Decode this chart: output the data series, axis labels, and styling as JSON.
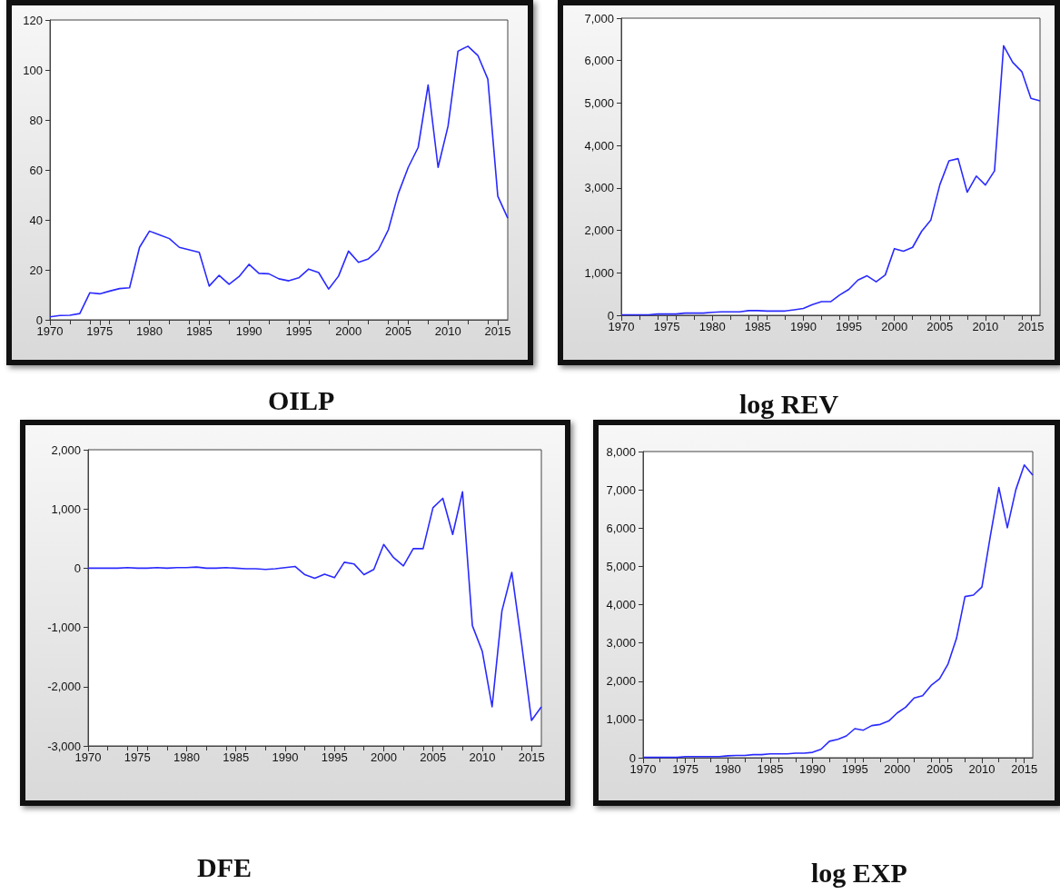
{
  "chart_data": [
    {
      "type": "line",
      "title": "OILP",
      "color": "#2a2aff",
      "marker": "none",
      "x": [
        1970,
        1971,
        1972,
        1973,
        1974,
        1975,
        1976,
        1977,
        1978,
        1979,
        1980,
        1981,
        1982,
        1983,
        1984,
        1985,
        1986,
        1987,
        1988,
        1989,
        1990,
        1991,
        1992,
        1993,
        1994,
        1995,
        1996,
        1997,
        1998,
        1999,
        2000,
        2001,
        2002,
        2003,
        2004,
        2005,
        2006,
        2007,
        2008,
        2009,
        2010,
        2011,
        2012,
        2013,
        2014,
        2015,
        2016
      ],
      "values": [
        1.2,
        1.7,
        1.8,
        2.5,
        10.8,
        10.4,
        11.5,
        12.5,
        12.8,
        29,
        35.5,
        34,
        32.5,
        29,
        28,
        27,
        13.5,
        17.8,
        14.2,
        17.3,
        22.2,
        18.6,
        18.4,
        16.4,
        15.6,
        16.8,
        20.3,
        18.9,
        12.3,
        17.5,
        27.5,
        23,
        24.4,
        28,
        36,
        50.5,
        61,
        69,
        94,
        61,
        77.5,
        107.5,
        109.5,
        105.8,
        96.3,
        49.5,
        40.7
      ],
      "xlim": [
        1970,
        2016
      ],
      "xticks": [
        1970,
        1975,
        1980,
        1985,
        1990,
        1995,
        2000,
        2005,
        2010,
        2015
      ],
      "ylim": [
        0,
        120
      ],
      "yticks": [
        0,
        20,
        40,
        60,
        80,
        100,
        120
      ]
    },
    {
      "type": "line",
      "title": "log REV",
      "color": "#2a2aff",
      "marker": "none",
      "x": [
        1970,
        1971,
        1972,
        1973,
        1974,
        1975,
        1976,
        1977,
        1978,
        1979,
        1980,
        1981,
        1982,
        1983,
        1984,
        1985,
        1986,
        1987,
        1988,
        1989,
        1990,
        1991,
        1992,
        1993,
        1994,
        1995,
        1996,
        1997,
        1998,
        1999,
        2000,
        2001,
        2002,
        2003,
        2004,
        2005,
        2006,
        2007,
        2008,
        2009,
        2010,
        2011,
        2012,
        2013,
        2014,
        2015,
        2016
      ],
      "values": [
        10,
        10,
        10,
        10,
        30,
        30,
        30,
        50,
        50,
        50,
        70,
        80,
        80,
        80,
        110,
        110,
        100,
        100,
        100,
        130,
        160,
        250,
        320,
        320,
        480,
        610,
        830,
        930,
        790,
        950,
        1570,
        1510,
        1600,
        1980,
        2240,
        3080,
        3640,
        3690,
        2900,
        3280,
        3070,
        3400,
        6350,
        5960,
        5740,
        5110,
        5050
      ],
      "xlim": [
        1970,
        2016
      ],
      "xticks": [
        1970,
        1975,
        1980,
        1985,
        1990,
        1995,
        2000,
        2005,
        2010,
        2015
      ],
      "ylim": [
        0,
        7000
      ],
      "yticks": [
        0,
        {
          "value": 1000,
          "label": "1,000"
        },
        {
          "value": 2000,
          "label": "2,000"
        },
        {
          "value": 3000,
          "label": "3,000"
        },
        {
          "value": 4000,
          "label": "4,000"
        },
        {
          "value": 5000,
          "label": "5,000"
        },
        {
          "value": 6000,
          "label": "6,000"
        },
        {
          "value": 7000,
          "label": "7,000"
        }
      ]
    },
    {
      "type": "line",
      "title": "DFE",
      "color": "#2a2aff",
      "marker": "none",
      "x": [
        1970,
        1971,
        1972,
        1973,
        1974,
        1975,
        1976,
        1977,
        1978,
        1979,
        1980,
        1981,
        1982,
        1983,
        1984,
        1985,
        1986,
        1987,
        1988,
        1989,
        1990,
        1991,
        1992,
        1993,
        1994,
        1995,
        1996,
        1997,
        1998,
        1999,
        2000,
        2001,
        2002,
        2003,
        2004,
        2005,
        2006,
        2007,
        2008,
        2009,
        2010,
        2011,
        2012,
        2013,
        2014,
        2015,
        2016
      ],
      "values": [
        0,
        0,
        0,
        0,
        10,
        0,
        0,
        10,
        0,
        10,
        10,
        20,
        0,
        0,
        10,
        0,
        -10,
        -10,
        -20,
        -10,
        10,
        30,
        -110,
        -170,
        -100,
        -160,
        100,
        70,
        -110,
        -20,
        400,
        180,
        40,
        330,
        330,
        1020,
        1180,
        570,
        1290,
        -970,
        -1400,
        -2340,
        -720,
        -70,
        -1280,
        -2570,
        -2340
      ],
      "xlim": [
        1970,
        2016
      ],
      "xticks": [
        1970,
        1975,
        1980,
        1985,
        1990,
        1995,
        2000,
        2005,
        2010,
        2015
      ],
      "ylim": [
        -3000,
        2000
      ],
      "yticks": [
        {
          "value": -3000,
          "label": "-3,000"
        },
        {
          "value": -2000,
          "label": "-2,000"
        },
        {
          "value": -1000,
          "label": "-1,000"
        },
        0,
        {
          "value": 1000,
          "label": "1,000"
        },
        {
          "value": 2000,
          "label": "2,000"
        }
      ]
    },
    {
      "type": "line",
      "title": "log EXP",
      "color": "#2a2aff",
      "marker": "none",
      "x": [
        1970,
        1971,
        1972,
        1973,
        1974,
        1975,
        1976,
        1977,
        1978,
        1979,
        1980,
        1981,
        1982,
        1983,
        1984,
        1985,
        1986,
        1987,
        1988,
        1989,
        1990,
        1991,
        1992,
        1993,
        1994,
        1995,
        1996,
        1997,
        1998,
        1999,
        2000,
        2001,
        2002,
        2003,
        2004,
        2005,
        2006,
        2007,
        2008,
        2009,
        2010,
        2011,
        2012,
        2013,
        2014,
        2015,
        2016
      ],
      "values": [
        10,
        10,
        10,
        10,
        10,
        30,
        30,
        30,
        30,
        30,
        50,
        60,
        60,
        80,
        80,
        100,
        100,
        100,
        120,
        120,
        140,
        220,
        430,
        480,
        570,
        760,
        720,
        840,
        870,
        960,
        1170,
        1320,
        1560,
        1620,
        1890,
        2060,
        2450,
        3120,
        4210,
        4250,
        4460,
        5800,
        7060,
        6010,
        7000,
        7650,
        7380
      ],
      "xlim": [
        1970,
        2016
      ],
      "xticks": [
        1970,
        1975,
        1980,
        1985,
        1990,
        1995,
        2000,
        2005,
        2010,
        2015
      ],
      "ylim": [
        0,
        8000
      ],
      "yticks": [
        0,
        {
          "value": 1000,
          "label": "1,000"
        },
        {
          "value": 2000,
          "label": "2,000"
        },
        {
          "value": 3000,
          "label": "3,000"
        },
        {
          "value": 4000,
          "label": "4,000"
        },
        {
          "value": 5000,
          "label": "5,000"
        },
        {
          "value": 6000,
          "label": "6,000"
        },
        {
          "value": 7000,
          "label": "7,000"
        },
        {
          "value": 8000,
          "label": "8,000"
        }
      ]
    }
  ]
}
